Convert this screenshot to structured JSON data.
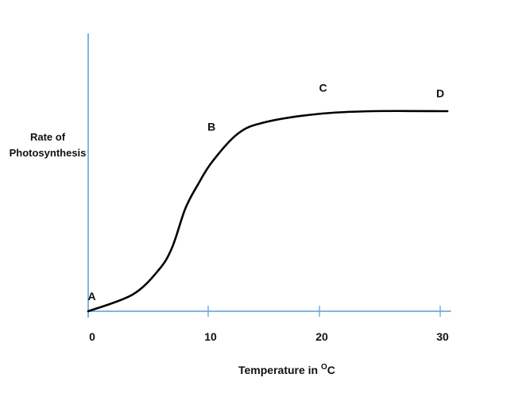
{
  "chart_data": {
    "type": "line",
    "title": "",
    "xlabel": "Temperature in ",
    "xlabel_superscript": "O",
    "xlabel_unit": "C",
    "ylabel_lines": [
      "Rate of",
      "Photosynthesis"
    ],
    "x_ticks": [
      0,
      10,
      20,
      30
    ],
    "x_tick_labels": [
      "0",
      "10",
      "20",
      "30"
    ],
    "xlim": [
      0,
      30.7
    ],
    "ylim": [
      0,
      100
    ],
    "y_ticks": [],
    "grid": false,
    "axis_color": "#5b9bd5",
    "line_color": "#000000",
    "series": [
      {
        "x": [
          0,
          3.7,
          5.9,
          7.0,
          8.1,
          9.2,
          10.4,
          12.7,
          15.1,
          19.9,
          24.4,
          30.6
        ],
        "y": [
          0,
          6,
          15,
          23,
          37,
          46,
          54,
          64,
          68,
          71,
          72,
          72
        ]
      }
    ],
    "annotations": [
      {
        "text": "A",
        "x": 0.3,
        "y": 4
      },
      {
        "text": "B",
        "x": 10.3,
        "y": 65
      },
      {
        "text": "C",
        "x": 20.3,
        "y": 79
      },
      {
        "text": "D",
        "x": 30,
        "y": 77
      }
    ]
  }
}
